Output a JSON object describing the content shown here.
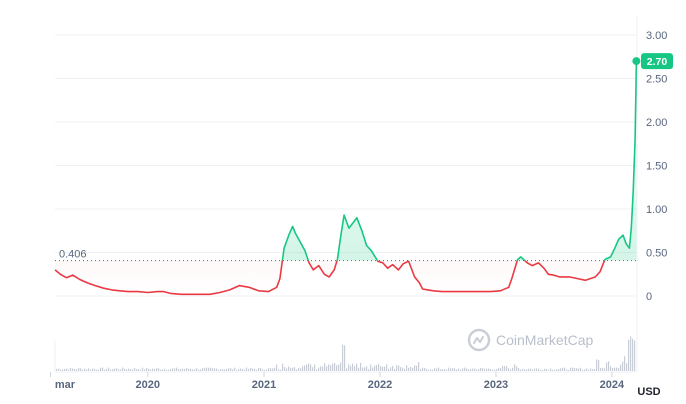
{
  "chart_data": {
    "type": "line",
    "baseline_value": 0.406,
    "baseline_label": "0.406",
    "current_value": 2.7,
    "current_label": "2.70",
    "unit": "USD",
    "ylim": [
      0,
      3.0
    ],
    "y_ticks": [
      "0",
      "0.50",
      "1.00",
      "1.50",
      "2.00",
      "2.50",
      "3.00"
    ],
    "x_ticks": [
      "mar",
      "2020",
      "2021",
      "2022",
      "2023",
      "2024"
    ],
    "xlim": [
      "2019-03-15",
      "2024-03-20"
    ],
    "colors": {
      "up": "#16c784",
      "down": "#ea3943",
      "grid": "#eff2f5",
      "axis_text": "#58667e",
      "badge": "#16c784"
    },
    "watermark": "CoinMarketCap",
    "series": [
      {
        "x": [
          "2019-03-15",
          "2019-04-01",
          "2019-04-20",
          "2019-05-10",
          "2019-06-01",
          "2019-06-25",
          "2019-07-20",
          "2019-08-15",
          "2019-09-10",
          "2019-10-05",
          "2019-11-01",
          "2019-12-01",
          "2020-01-01",
          "2020-02-01",
          "2020-02-20",
          "2020-03-13",
          "2020-04-15",
          "2020-05-15",
          "2020-06-15",
          "2020-07-15",
          "2020-08-15",
          "2020-09-15",
          "2020-10-15",
          "2020-11-15",
          "2020-12-15",
          "2021-01-15",
          "2021-02-10",
          "2021-02-20",
          "2021-03-05",
          "2021-03-20",
          "2021-04-01",
          "2021-04-10",
          "2021-04-25",
          "2021-05-10",
          "2021-05-23",
          "2021-06-05",
          "2021-06-22",
          "2021-07-10",
          "2021-07-25",
          "2021-08-10",
          "2021-08-20",
          "2021-08-31",
          "2021-09-10",
          "2021-09-25",
          "2021-10-10",
          "2021-10-20",
          "2021-11-05",
          "2021-11-20",
          "2021-12-05",
          "2021-12-25",
          "2022-01-10",
          "2022-01-25",
          "2022-02-10",
          "2022-02-28",
          "2022-03-15",
          "2022-04-01",
          "2022-04-20",
          "2022-05-05",
          "2022-05-15",
          "2022-06-01",
          "2022-06-18",
          "2022-07-15",
          "2022-08-15",
          "2022-09-15",
          "2022-10-15",
          "2022-11-15",
          "2022-12-15",
          "2023-01-15",
          "2023-02-10",
          "2023-02-20",
          "2023-03-10",
          "2023-03-20",
          "2023-04-10",
          "2023-04-25",
          "2023-05-15",
          "2023-06-01",
          "2023-06-15",
          "2023-07-01",
          "2023-07-20",
          "2023-08-20",
          "2023-09-15",
          "2023-10-10",
          "2023-10-25",
          "2023-11-10",
          "2023-11-25",
          "2023-12-10",
          "2023-12-28",
          "2024-01-10",
          "2024-01-22",
          "2024-02-05",
          "2024-02-15",
          "2024-02-25",
          "2024-03-02",
          "2024-03-08",
          "2024-03-14",
          "2024-03-18"
        ],
        "y": [
          0.3,
          0.25,
          0.21,
          0.24,
          0.19,
          0.15,
          0.12,
          0.09,
          0.07,
          0.06,
          0.05,
          0.05,
          0.04,
          0.05,
          0.05,
          0.03,
          0.02,
          0.02,
          0.02,
          0.02,
          0.04,
          0.07,
          0.12,
          0.1,
          0.06,
          0.05,
          0.1,
          0.2,
          0.55,
          0.7,
          0.8,
          0.72,
          0.62,
          0.52,
          0.38,
          0.3,
          0.35,
          0.25,
          0.22,
          0.3,
          0.42,
          0.7,
          0.93,
          0.78,
          0.85,
          0.9,
          0.75,
          0.58,
          0.52,
          0.4,
          0.38,
          0.32,
          0.36,
          0.3,
          0.37,
          0.4,
          0.22,
          0.15,
          0.08,
          0.07,
          0.06,
          0.05,
          0.05,
          0.05,
          0.05,
          0.05,
          0.05,
          0.06,
          0.1,
          0.2,
          0.42,
          0.45,
          0.38,
          0.35,
          0.38,
          0.32,
          0.25,
          0.24,
          0.22,
          0.22,
          0.2,
          0.18,
          0.2,
          0.22,
          0.28,
          0.42,
          0.45,
          0.55,
          0.65,
          0.7,
          0.6,
          0.55,
          0.78,
          1.2,
          1.8,
          2.7
        ]
      }
    ]
  }
}
